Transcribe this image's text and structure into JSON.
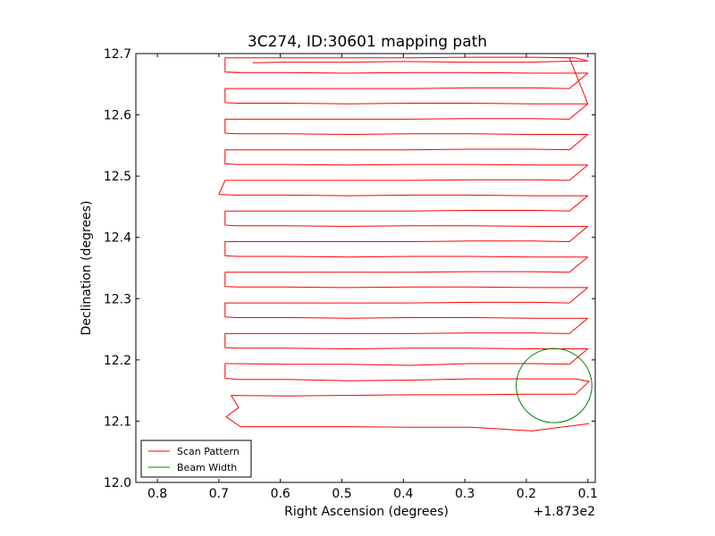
{
  "chart_data": {
    "type": "line",
    "title": "3C274, ID:30601 mapping path",
    "xlabel": "Right Ascension (degrees)",
    "ylabel": "Declination (degrees)",
    "x_offset_label": "+1.873e2",
    "xlim": [
      0.835,
      0.088
    ],
    "ylim": [
      12.0,
      12.7
    ],
    "x_ticks": [
      "0.8",
      "0.7",
      "0.6",
      "0.5",
      "0.4",
      "0.3",
      "0.2",
      "0.1"
    ],
    "y_ticks": [
      "12.0",
      "12.1",
      "12.2",
      "12.3",
      "12.4",
      "12.5",
      "12.6",
      "12.7"
    ],
    "legend": {
      "placement": "lower-left",
      "entries": [
        "Scan Pattern",
        "Beam Width"
      ]
    },
    "series": [
      {
        "name": "Scan Pattern",
        "color": "#ff0000",
        "x": [
          0.098,
          0.191,
          0.29,
          0.39,
          0.49,
          0.59,
          0.665,
          0.688,
          0.668,
          0.68,
          0.59,
          0.49,
          0.39,
          0.29,
          0.19,
          0.12,
          0.098,
          0.12,
          0.19,
          0.29,
          0.39,
          0.49,
          0.59,
          0.67,
          0.69,
          0.69,
          0.59,
          0.49,
          0.39,
          0.29,
          0.19,
          0.13,
          0.1,
          0.13,
          0.19,
          0.29,
          0.39,
          0.49,
          0.59,
          0.67,
          0.69,
          0.69,
          0.59,
          0.49,
          0.39,
          0.29,
          0.19,
          0.13,
          0.1,
          0.13,
          0.19,
          0.29,
          0.39,
          0.49,
          0.59,
          0.67,
          0.69,
          0.69,
          0.59,
          0.49,
          0.39,
          0.29,
          0.19,
          0.13,
          0.1,
          0.13,
          0.19,
          0.29,
          0.39,
          0.49,
          0.59,
          0.67,
          0.69,
          0.69,
          0.59,
          0.49,
          0.39,
          0.29,
          0.19,
          0.13,
          0.1,
          0.13,
          0.19,
          0.29,
          0.39,
          0.49,
          0.59,
          0.67,
          0.69,
          0.69,
          0.59,
          0.49,
          0.39,
          0.29,
          0.19,
          0.13,
          0.1,
          0.13,
          0.19,
          0.29,
          0.39,
          0.49,
          0.59,
          0.67,
          0.69,
          0.69,
          0.59,
          0.49,
          0.39,
          0.29,
          0.19,
          0.13,
          0.1,
          0.13,
          0.19,
          0.29,
          0.39,
          0.49,
          0.59,
          0.67,
          0.7,
          0.69,
          0.59,
          0.49,
          0.39,
          0.29,
          0.19,
          0.13,
          0.1,
          0.13,
          0.19,
          0.29,
          0.39,
          0.49,
          0.59,
          0.67,
          0.69,
          0.69,
          0.59,
          0.49,
          0.39,
          0.29,
          0.19,
          0.13,
          0.1,
          0.13,
          0.19,
          0.29,
          0.39,
          0.49,
          0.59,
          0.67,
          0.69,
          0.69,
          0.59,
          0.49,
          0.39,
          0.29,
          0.19,
          0.13,
          0.1,
          0.13,
          0.19,
          0.29,
          0.39,
          0.49,
          0.59,
          0.67,
          0.69,
          0.69,
          0.59,
          0.49,
          0.39,
          0.29,
          0.19,
          0.13,
          0.1,
          0.13,
          0.19,
          0.29,
          0.39,
          0.49,
          0.59,
          0.67,
          0.69,
          0.69,
          0.59,
          0.49,
          0.39,
          0.29,
          0.19,
          0.13,
          0.1,
          0.13,
          0.19,
          0.29,
          0.39,
          0.49,
          0.59,
          0.67,
          0.69,
          0.69,
          0.59,
          0.49,
          0.39,
          0.29,
          0.19,
          0.13,
          0.1,
          0.13,
          0.19,
          0.29,
          0.39,
          0.49,
          0.59,
          0.67,
          0.69,
          0.69,
          0.59,
          0.49,
          0.39,
          0.29,
          0.19,
          0.13,
          0.1,
          0.13,
          0.19,
          0.29,
          0.39,
          0.49,
          0.59,
          0.67,
          0.69,
          0.69,
          0.59,
          0.49,
          0.39,
          0.29,
          0.19,
          0.13,
          0.1,
          0.13,
          0.19,
          0.29,
          0.39,
          0.49,
          0.59,
          0.67,
          0.69,
          0.69,
          0.59,
          0.49,
          0.39,
          0.29,
          0.19,
          0.13,
          0.1,
          0.13,
          0.19,
          0.29,
          0.39,
          0.49,
          0.59,
          0.67,
          0.69,
          0.69,
          0.59,
          0.49,
          0.39,
          0.29,
          0.19,
          0.13,
          0.1,
          0.13,
          0.19,
          0.29,
          0.39,
          0.49,
          0.59,
          0.66,
          0.69,
          0.69,
          0.59,
          0.49,
          0.39,
          0.29,
          0.19,
          0.12,
          0.1,
          0.2,
          0.3,
          0.4,
          0.5,
          0.6,
          0.645
        ],
        "y": [
          12.096,
          12.084,
          12.09,
          12.09,
          12.091,
          12.091,
          12.091,
          12.107,
          12.122,
          12.142,
          12.141,
          12.142,
          12.143,
          12.143,
          12.144,
          12.144,
          12.165,
          12.169,
          12.169,
          12.169,
          12.167,
          12.166,
          12.168,
          12.168,
          12.17,
          12.194,
          12.193,
          12.193,
          12.191,
          12.194,
          12.194,
          12.193,
          12.218,
          12.218,
          12.218,
          12.219,
          12.219,
          12.218,
          12.219,
          12.219,
          12.22,
          12.243,
          12.243,
          12.243,
          12.243,
          12.244,
          12.244,
          12.243,
          12.268,
          12.268,
          12.268,
          12.269,
          12.269,
          12.268,
          12.269,
          12.269,
          12.27,
          12.293,
          12.293,
          12.293,
          12.293,
          12.294,
          12.294,
          12.293,
          12.318,
          12.318,
          12.318,
          12.319,
          12.319,
          12.318,
          12.319,
          12.319,
          12.32,
          12.343,
          12.343,
          12.343,
          12.343,
          12.344,
          12.344,
          12.343,
          12.368,
          12.368,
          12.368,
          12.369,
          12.369,
          12.368,
          12.369,
          12.369,
          12.37,
          12.393,
          12.393,
          12.393,
          12.393,
          12.394,
          12.394,
          12.393,
          12.418,
          12.418,
          12.418,
          12.419,
          12.419,
          12.418,
          12.419,
          12.419,
          12.42,
          12.443,
          12.443,
          12.443,
          12.443,
          12.444,
          12.444,
          12.443,
          12.468,
          12.468,
          12.468,
          12.469,
          12.469,
          12.468,
          12.469,
          12.469,
          12.47,
          12.493,
          12.493,
          12.493,
          12.493,
          12.494,
          12.494,
          12.493,
          12.518,
          12.518,
          12.518,
          12.519,
          12.519,
          12.518,
          12.519,
          12.519,
          12.52,
          12.543,
          12.543,
          12.543,
          12.543,
          12.544,
          12.544,
          12.543,
          12.568,
          12.568,
          12.568,
          12.569,
          12.569,
          12.568,
          12.569,
          12.569,
          12.57,
          12.593,
          12.593,
          12.593,
          12.593,
          12.594,
          12.594,
          12.593,
          12.618,
          12.618,
          12.618,
          12.619,
          12.619,
          12.618,
          12.619,
          12.619,
          12.62,
          12.643,
          12.643,
          12.643,
          12.643,
          12.644,
          12.644,
          12.643,
          12.668,
          12.668,
          12.668,
          12.669,
          12.669,
          12.668,
          12.669,
          12.669,
          12.67,
          12.693,
          12.693,
          12.693,
          12.693,
          12.694,
          12.694,
          12.693,
          12.618,
          12.618,
          12.618,
          12.619,
          12.619,
          12.618,
          12.619,
          12.619,
          12.62,
          12.643,
          12.643,
          12.643,
          12.643,
          12.644,
          12.644,
          12.643,
          12.668,
          12.668,
          12.668,
          12.669,
          12.669,
          12.668,
          12.669,
          12.669,
          12.67,
          12.693,
          12.693,
          12.693,
          12.693,
          12.694,
          12.694,
          12.693,
          12.618,
          12.618,
          12.618,
          12.619,
          12.619,
          12.618,
          12.619,
          12.619,
          12.62,
          12.643,
          12.643,
          12.643,
          12.643,
          12.644,
          12.644,
          12.643,
          12.668,
          12.668,
          12.668,
          12.669,
          12.669,
          12.668,
          12.669,
          12.669,
          12.67,
          12.693,
          12.693,
          12.693,
          12.693,
          12.694,
          12.694,
          12.693,
          12.618,
          12.618,
          12.618,
          12.619,
          12.619,
          12.618,
          12.619,
          12.619,
          12.62,
          12.643,
          12.643,
          12.643,
          12.643,
          12.644,
          12.644,
          12.643,
          12.668,
          12.668,
          12.668,
          12.669,
          12.669,
          12.668,
          12.669,
          12.669,
          12.67,
          12.693,
          12.693,
          12.693,
          12.693,
          12.694,
          12.694,
          12.693,
          12.688,
          12.686,
          12.686,
          12.687,
          12.686,
          12.686,
          12.685
        ]
      },
      {
        "name": "Beam Width",
        "color": "#008000",
        "shape": "circle",
        "center": [
          0.155,
          12.158
        ],
        "radius_x": 0.0615,
        "radius_y": 0.0605
      }
    ]
  }
}
